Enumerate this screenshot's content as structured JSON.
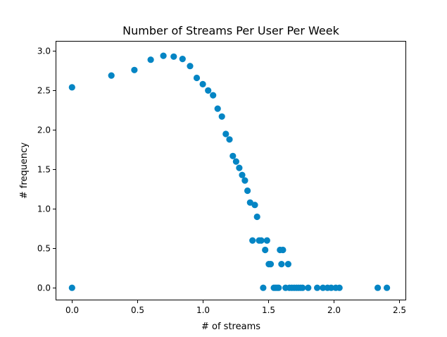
{
  "chart_data": {
    "type": "scatter",
    "title": "Number of Streams Per User Per Week",
    "xlabel": "# of streams",
    "ylabel": "# frequency",
    "xlim": [
      -0.12,
      2.55
    ],
    "ylim": [
      -0.15,
      3.12
    ],
    "xticks": [
      0.0,
      0.5,
      1.0,
      1.5,
      2.0,
      2.5
    ],
    "xtick_labels": [
      "0.0",
      "0.5",
      "1.0",
      "1.5",
      "2.0",
      "2.5"
    ],
    "yticks": [
      0.0,
      0.5,
      1.0,
      1.5,
      2.0,
      2.5,
      3.0
    ],
    "ytick_labels": [
      "0.0",
      "0.5",
      "1.0",
      "1.5",
      "2.0",
      "2.5",
      "3.0"
    ],
    "grid": false,
    "marker_color": "#0485c4",
    "points": [
      [
        0.0,
        2.54
      ],
      [
        0.0,
        0.0
      ],
      [
        0.301,
        2.69
      ],
      [
        0.477,
        2.76
      ],
      [
        0.602,
        2.89
      ],
      [
        0.699,
        2.94
      ],
      [
        0.778,
        2.93
      ],
      [
        0.845,
        2.9
      ],
      [
        0.903,
        2.81
      ],
      [
        0.954,
        2.66
      ],
      [
        1.0,
        2.58
      ],
      [
        1.041,
        2.5
      ],
      [
        1.079,
        2.44
      ],
      [
        1.114,
        2.27
      ],
      [
        1.146,
        2.17
      ],
      [
        1.176,
        1.95
      ],
      [
        1.204,
        1.88
      ],
      [
        1.23,
        1.67
      ],
      [
        1.255,
        1.6
      ],
      [
        1.279,
        1.52
      ],
      [
        1.301,
        1.43
      ],
      [
        1.322,
        1.36
      ],
      [
        1.342,
        1.23
      ],
      [
        1.362,
        1.08
      ],
      [
        1.38,
        0.6
      ],
      [
        1.398,
        1.05
      ],
      [
        1.415,
        0.9
      ],
      [
        1.431,
        0.6
      ],
      [
        1.447,
        0.6
      ],
      [
        1.462,
        0.0
      ],
      [
        1.477,
        0.48
      ],
      [
        1.491,
        0.6
      ],
      [
        1.505,
        0.3
      ],
      [
        1.519,
        0.3
      ],
      [
        1.544,
        0.0
      ],
      [
        1.556,
        0.0
      ],
      [
        1.568,
        0.0
      ],
      [
        1.58,
        0.0
      ],
      [
        1.591,
        0.48
      ],
      [
        1.602,
        0.3
      ],
      [
        1.613,
        0.48
      ],
      [
        1.633,
        0.0
      ],
      [
        1.653,
        0.3
      ],
      [
        1.663,
        0.0
      ],
      [
        1.681,
        0.0
      ],
      [
        1.699,
        0.0
      ],
      [
        1.716,
        0.0
      ],
      [
        1.732,
        0.0
      ],
      [
        1.748,
        0.0
      ],
      [
        1.763,
        0.0
      ],
      [
        1.806,
        0.0
      ],
      [
        1.875,
        0.0
      ],
      [
        1.919,
        0.0
      ],
      [
        1.954,
        0.0
      ],
      [
        1.982,
        0.0
      ],
      [
        2.017,
        0.0
      ],
      [
        2.045,
        0.0
      ],
      [
        2.338,
        0.0
      ],
      [
        2.408,
        0.0
      ]
    ]
  }
}
